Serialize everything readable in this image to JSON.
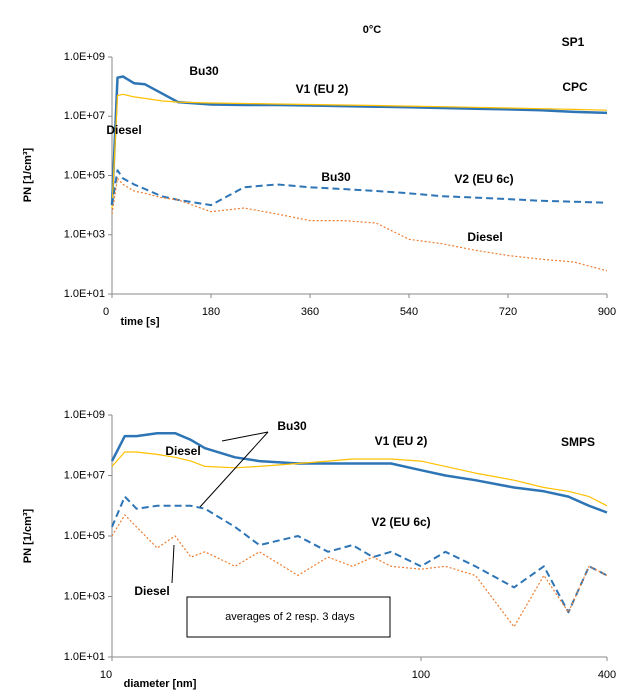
{
  "chart_data": [
    {
      "type": "line",
      "title": "0°C",
      "xlabel": "time [s]",
      "ylabel": "PN [1/cm³]",
      "ylog": true,
      "annotations": [
        "SP1",
        "CPC",
        "V1 (EU 2)",
        "V2 (EU 6c)",
        "Bu30",
        "Diesel",
        "Bu30",
        "Diesel"
      ],
      "x": [
        0,
        10,
        20,
        40,
        60,
        90,
        120,
        180,
        240,
        300,
        360,
        420,
        480,
        540,
        600,
        660,
        720,
        780,
        840,
        900
      ],
      "xlim": [
        0,
        900
      ],
      "xticks": [
        0,
        180,
        360,
        540,
        720,
        900
      ],
      "ylim": [
        10,
        1000000000
      ],
      "yticks": [
        {
          "value": 10,
          "label": "1.0E+01"
        },
        {
          "value": 1000,
          "label": "1.0E+03"
        },
        {
          "value": 100000,
          "label": "1.0E+05"
        },
        {
          "value": 10000000,
          "label": "1.0E+07"
        },
        {
          "value": 1000000000,
          "label": "1.0E+09"
        }
      ],
      "series": [
        {
          "color": "#2e75b6",
          "linestyle": "solid",
          "width": 2.5,
          "values": [
            10000,
            200000000,
            220000000,
            130000000,
            120000000,
            60000000,
            30000000,
            25000000,
            24000000,
            24000000,
            23000000,
            22000000,
            21000000,
            20000000,
            19000000,
            18000000,
            17000000,
            16000000,
            14000000,
            13000000
          ]
        },
        {
          "color": "#ffc000",
          "linestyle": "solid",
          "width": 1.2,
          "values": [
            8000,
            50000000,
            55000000,
            45000000,
            40000000,
            33000000,
            30000000,
            28000000,
            27000000,
            26000000,
            25000000,
            24000000,
            23000000,
            22000000,
            21000000,
            20000000,
            19000000,
            18000000,
            17000000,
            16000000
          ]
        },
        {
          "color": "#2e75b6",
          "linestyle": "dashed",
          "width": 2,
          "values": [
            10000,
            150000,
            80000,
            50000,
            35000,
            20000,
            15000,
            10000,
            40000,
            50000,
            40000,
            35000,
            30000,
            25000,
            20000,
            18000,
            16000,
            14000,
            13000,
            12000
          ]
        },
        {
          "color": "#ed7d31",
          "linestyle": "dotted",
          "width": 1.2,
          "values": [
            5000,
            80000,
            50000,
            30000,
            25000,
            18000,
            15000,
            6000,
            8000,
            5000,
            3000,
            3000,
            2500,
            700,
            500,
            300,
            200,
            150,
            120,
            60
          ]
        }
      ]
    },
    {
      "type": "line",
      "xlabel": "diameter [nm]",
      "ylabel": "PN [1/cm³]",
      "ylog": true,
      "xlog": true,
      "annotations": [
        "SMPS",
        "V1 (EU 2)",
        "V2 (EU 6c)",
        "Bu30",
        "Diesel",
        "Diesel",
        "averages of 2 resp. 3 days"
      ],
      "x": [
        10,
        11,
        12,
        14,
        16,
        18,
        20,
        25,
        30,
        40,
        50,
        60,
        70,
        80,
        100,
        120,
        150,
        200,
        250,
        300,
        350,
        400
      ],
      "xlim": [
        10,
        400
      ],
      "xticks": [
        10,
        100,
        400
      ],
      "ylim": [
        10,
        1000000000
      ],
      "yticks": [
        {
          "value": 10,
          "label": "1.0E+01"
        },
        {
          "value": 1000,
          "label": "1.0E+03"
        },
        {
          "value": 100000,
          "label": "1.0E+05"
        },
        {
          "value": 10000000,
          "label": "1.0E+07"
        },
        {
          "value": 1000000000,
          "label": "1.0E+09"
        }
      ],
      "series": [
        {
          "color": "#2e75b6",
          "linestyle": "solid",
          "width": 2.5,
          "values": [
            30000000,
            200000000,
            200000000,
            250000000,
            250000000,
            150000000,
            80000000,
            40000000,
            30000000,
            25000000,
            25000000,
            25000000,
            25000000,
            25000000,
            15000000,
            10000000,
            7000000,
            4000000,
            3000000,
            2000000,
            1000000,
            600000
          ]
        },
        {
          "color": "#ffc000",
          "linestyle": "solid",
          "width": 1.2,
          "values": [
            20000000,
            60000000,
            60000000,
            50000000,
            40000000,
            30000000,
            20000000,
            18000000,
            20000000,
            25000000,
            30000000,
            35000000,
            35000000,
            35000000,
            30000000,
            20000000,
            12000000,
            7000000,
            4000000,
            3000000,
            2000000,
            1000000
          ]
        },
        {
          "color": "#2e75b6",
          "linestyle": "dashed",
          "width": 2,
          "values": [
            200000,
            2000000,
            800000,
            1000000,
            1000000,
            1000000,
            800000,
            200000,
            50000,
            100000,
            30000,
            50000,
            20000,
            30000,
            10000,
            30000,
            10000,
            2000,
            10000,
            300,
            10000,
            5000
          ]
        },
        {
          "color": "#ed7d31",
          "linestyle": "dotted",
          "width": 1.2,
          "values": [
            100000,
            500000,
            200000,
            40000,
            100000,
            20000,
            30000,
            10000,
            30000,
            5000,
            20000,
            10000,
            20000,
            10000,
            8000,
            10000,
            5000,
            100,
            5000,
            300,
            10000,
            5000
          ]
        }
      ]
    }
  ]
}
